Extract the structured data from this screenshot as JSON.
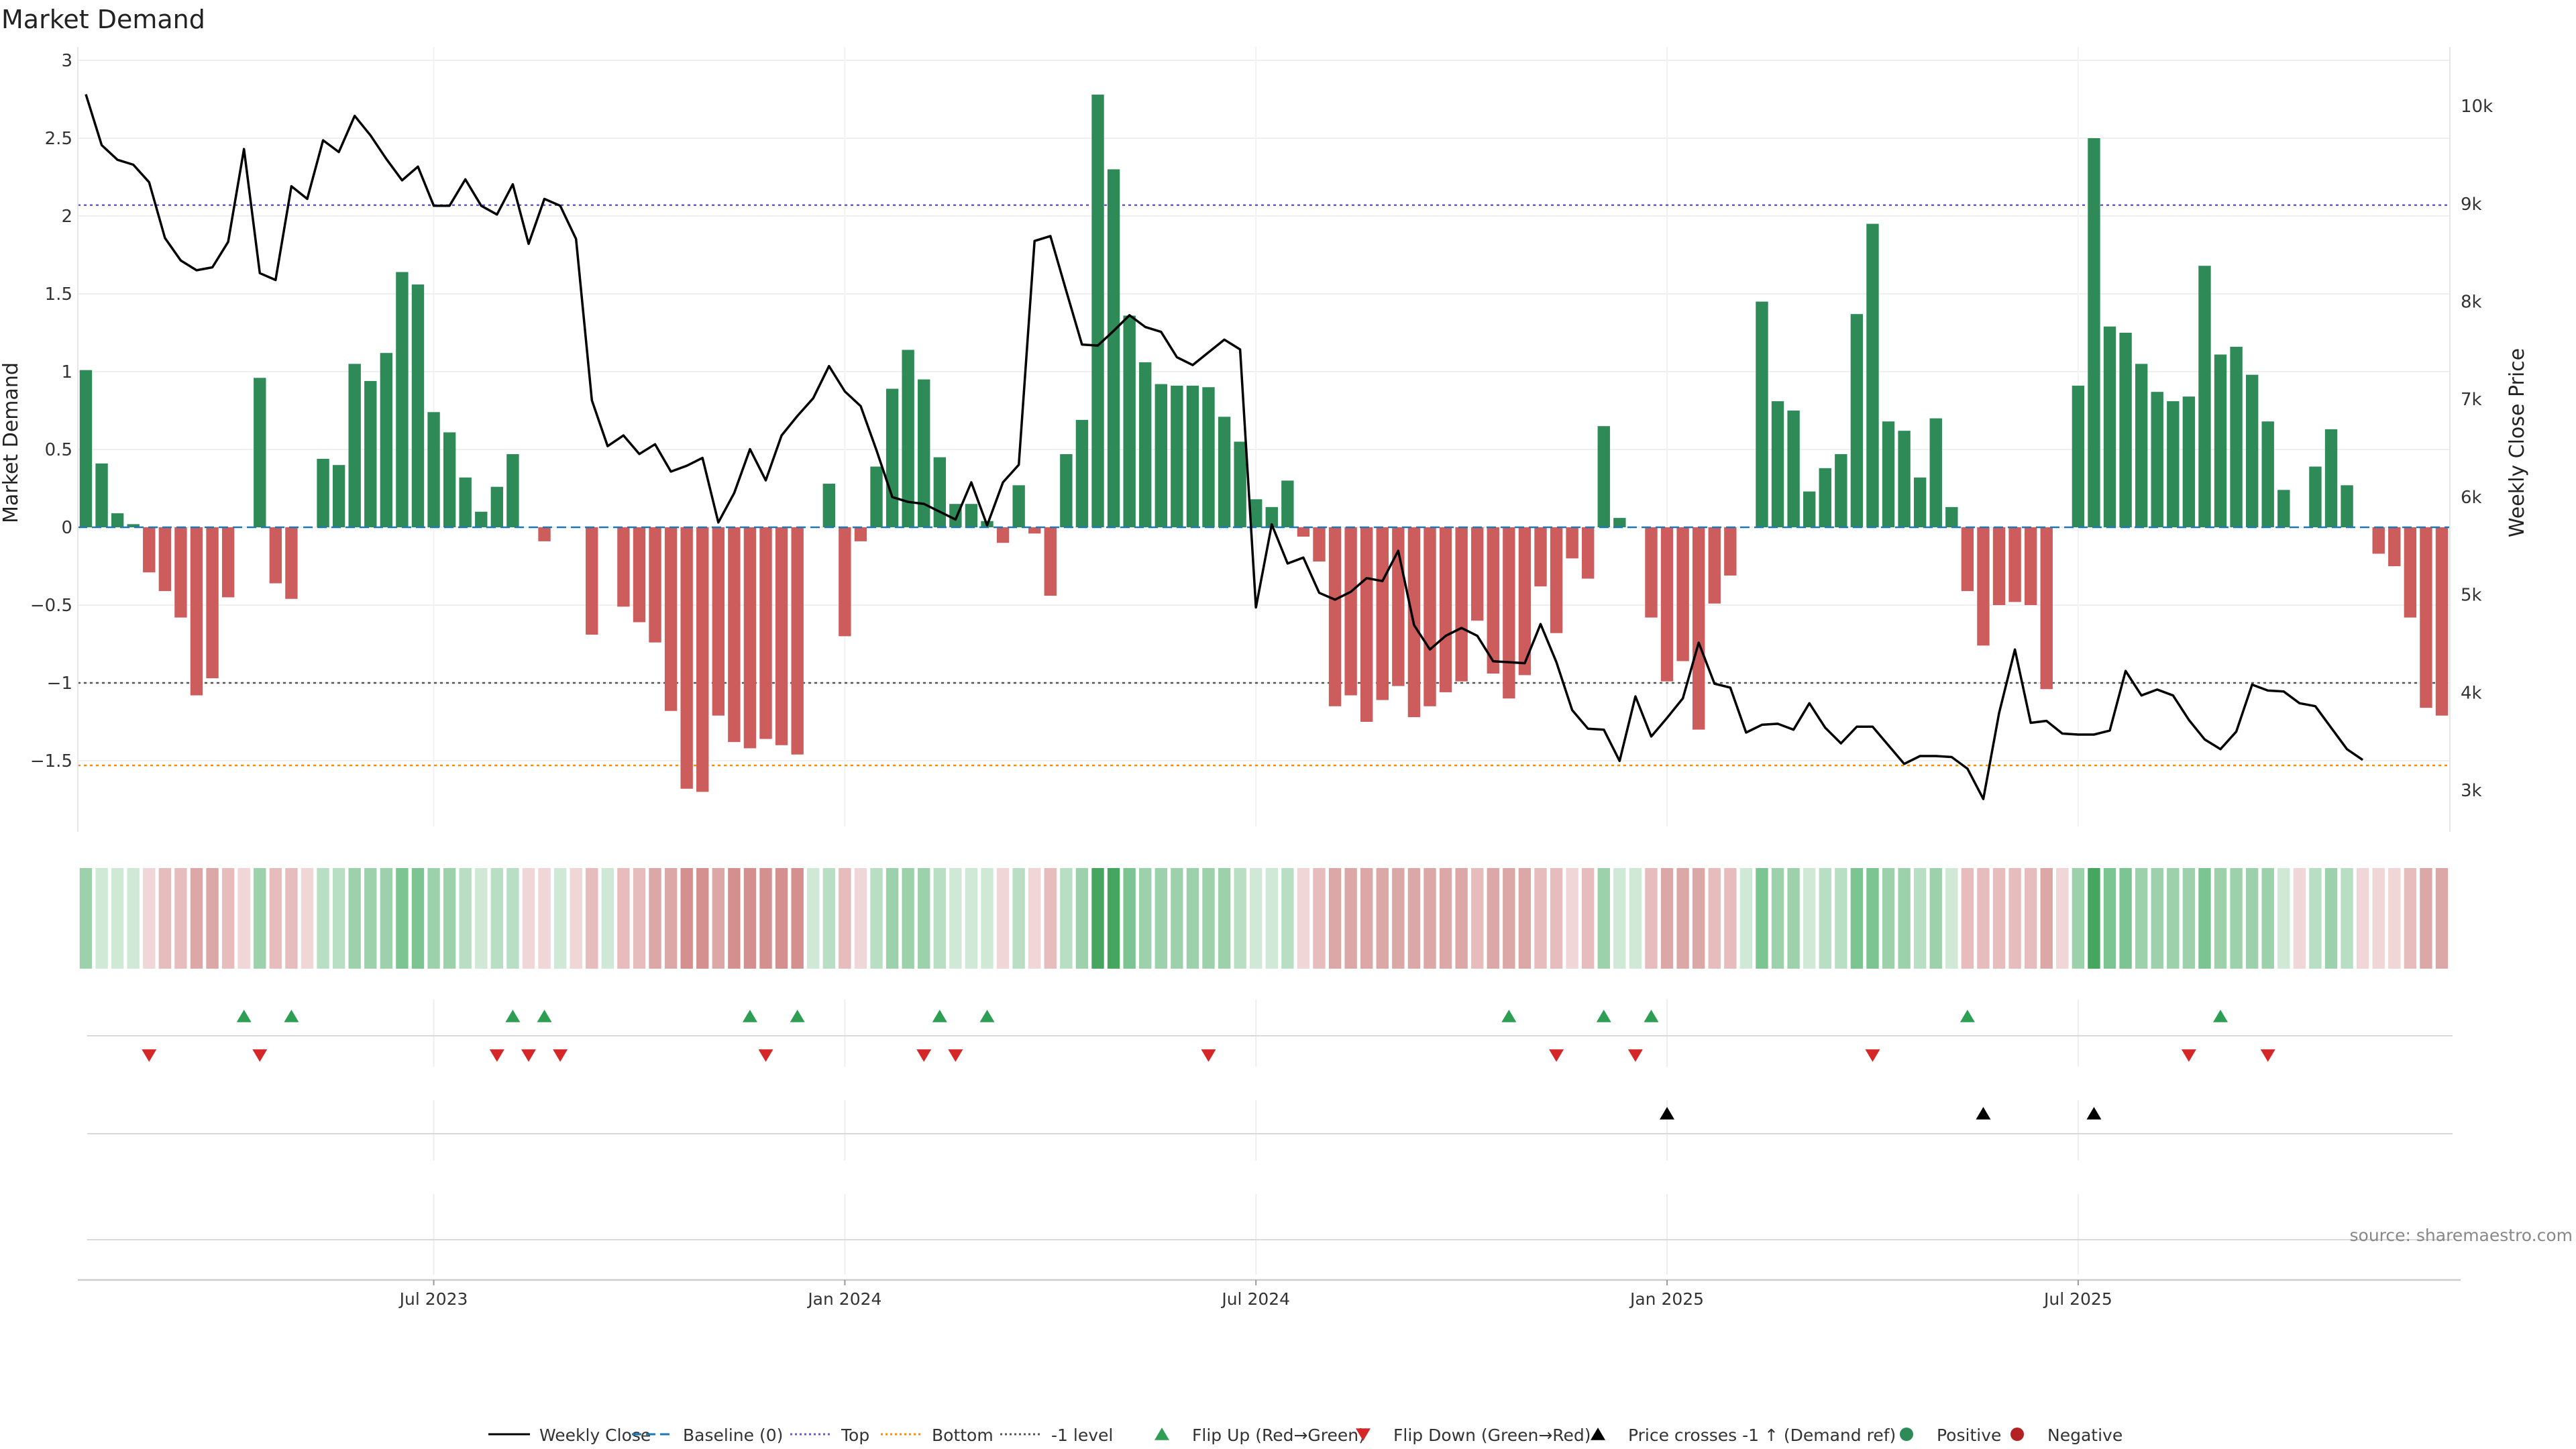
{
  "chart_data": {
    "type": "bar",
    "title": "Market Demand",
    "ylabel": "Market Demand",
    "y2label": "Weekly Close Price",
    "source": "source: sharemaestro.com",
    "ylim": [
      -1.95,
      3.0
    ],
    "y2lim": [
      2800,
      10500
    ],
    "yticks": [
      "3",
      "2.5",
      "2",
      "1.5",
      "1",
      "0.5",
      "0",
      "−0.5",
      "−1",
      "−1.5"
    ],
    "ytick_values": [
      3,
      2.5,
      2,
      1.5,
      1,
      0.5,
      0,
      -0.5,
      -1,
      -1.5
    ],
    "y2ticks": [
      "10k",
      "9k",
      "8k",
      "7k",
      "6k",
      "5k",
      "4k",
      "3k"
    ],
    "y2tick_values": [
      10000,
      9000,
      8000,
      7000,
      6000,
      5000,
      4000,
      3000
    ],
    "xticks": [
      "Jul 2023",
      "Jan 2024",
      "Jul 2024",
      "Jan 2025",
      "Jul 2025"
    ],
    "xtick_weeks": [
      22,
      48,
      74,
      100,
      126
    ],
    "levels": {
      "top": 2.07,
      "bottom": -1.53,
      "minus_one": -1.0
    },
    "demand": [
      1.01,
      0.41,
      0.09,
      0.02,
      -0.29,
      -0.41,
      -0.58,
      -1.08,
      -0.97,
      -0.45,
      0,
      0.96,
      -0.36,
      -0.46,
      0,
      0.44,
      0.4,
      1.05,
      0.94,
      1.12,
      1.64,
      1.56,
      0.74,
      0.61,
      0.32,
      0.1,
      0.26,
      0.47,
      0,
      -0.09,
      0,
      0,
      -0.69,
      0,
      -0.51,
      -0.61,
      -0.74,
      -1.18,
      -1.68,
      -1.7,
      -1.21,
      -1.38,
      -1.42,
      -1.36,
      -1.4,
      -1.46,
      0,
      0.28,
      -0.7,
      -0.09,
      0.39,
      0.89,
      1.14,
      0.95,
      0.45,
      0.15,
      0.15,
      0.04,
      -0.1,
      0.27,
      -0.04,
      -0.44,
      0.47,
      0.69,
      2.78,
      2.3,
      1.36,
      1.06,
      0.92,
      0.91,
      0.91,
      0.9,
      0.71,
      0.55,
      0.18,
      0.13,
      0.3,
      -0.06,
      -0.22,
      -1.15,
      -1.08,
      -1.25,
      -1.11,
      -1.02,
      -1.22,
      -1.15,
      -1.06,
      -0.99,
      -0.6,
      -0.94,
      -1.1,
      -0.95,
      -0.38,
      -0.68,
      -0.2,
      -0.33,
      0.65,
      0.06,
      0,
      -0.58,
      -0.99,
      -0.86,
      -1.3,
      -0.49,
      -0.31,
      0,
      1.45,
      0.81,
      0.75,
      0.23,
      0.38,
      0.47,
      1.37,
      1.95,
      0.68,
      0.62,
      0.32,
      0.7,
      0.13,
      -0.41,
      -0.76,
      -0.5,
      -0.48,
      -0.5,
      -1.04,
      0,
      0.91,
      2.5,
      1.29,
      1.25,
      1.05,
      0.87,
      0.81,
      0.84,
      1.68,
      1.11,
      1.16,
      0.98,
      0.68,
      0.24,
      0,
      0.39,
      0.63,
      0.27,
      0,
      -0.17,
      -0.25,
      -0.58,
      -1.16,
      -1.21
    ],
    "price": [
      10120,
      9600,
      9450,
      9400,
      9220,
      8650,
      8420,
      8320,
      8350,
      8610,
      9560,
      8290,
      8220,
      9180,
      9050,
      9650,
      9530,
      9900,
      9700,
      9460,
      9240,
      9380,
      8980,
      8980,
      9250,
      8980,
      8890,
      9200,
      8590,
      9050,
      8980,
      8640,
      6990,
      6520,
      6630,
      6440,
      6540,
      6260,
      6320,
      6400,
      5740,
      6040,
      6490,
      6170,
      6630,
      6830,
      7010,
      7340,
      7080,
      6930,
      6480,
      6000,
      5950,
      5930,
      5850,
      5770,
      6150,
      5710,
      6150,
      6330,
      8620,
      8670,
      8110,
      7560,
      7550,
      7700,
      7860,
      7740,
      7690,
      7430,
      7350,
      7480,
      7610,
      7510,
      4870,
      5720,
      5320,
      5380,
      5020,
      4950,
      5030,
      5170,
      5140,
      5450,
      4690,
      4440,
      4580,
      4660,
      4580,
      4320,
      4310,
      4300,
      4700,
      4310,
      3820,
      3630,
      3620,
      3300,
      3960,
      3550,
      3740,
      3940,
      4510,
      4090,
      4050,
      3590,
      3670,
      3680,
      3620,
      3890,
      3640,
      3480,
      3650,
      3650,
      3460,
      3270,
      3350,
      3350,
      3340,
      3220,
      2910,
      3790,
      4440,
      3690,
      3710,
      3580,
      3570,
      3570,
      3610,
      4220,
      3970,
      4030,
      3970,
      3720,
      3520,
      3420,
      3600,
      4080,
      4020,
      4010,
      3890,
      3860,
      3640,
      3420,
      3310
    ],
    "strip_shades": [
      3,
      1,
      1,
      1,
      -1,
      -2,
      -2,
      -3,
      -3,
      -2,
      -1,
      3,
      -2,
      -2,
      -1,
      2,
      2,
      3,
      3,
      3,
      4,
      4,
      3,
      3,
      2,
      1,
      2,
      2,
      -1,
      -1,
      1,
      -1,
      -2,
      1,
      -2,
      -2,
      -3,
      -3,
      -4,
      -4,
      -3,
      -4,
      -4,
      -4,
      -4,
      -4,
      1,
      2,
      -2,
      -1,
      2,
      3,
      3,
      3,
      2,
      1,
      1,
      1,
      -1,
      2,
      -1,
      -2,
      2,
      3,
      5,
      5,
      4,
      3,
      3,
      3,
      3,
      3,
      3,
      2,
      1,
      1,
      2,
      -1,
      -2,
      -3,
      -3,
      -3,
      -3,
      -3,
      -3,
      -3,
      -3,
      -3,
      -2,
      -3,
      -3,
      -3,
      -2,
      -2,
      -1,
      -2,
      3,
      1,
      1,
      -2,
      -3,
      -3,
      -3,
      -2,
      -2,
      1,
      4,
      3,
      3,
      1,
      2,
      2,
      4,
      4,
      3,
      3,
      2,
      3,
      1,
      -2,
      -2,
      -2,
      -2,
      -2,
      -3,
      -1,
      3,
      5,
      4,
      4,
      3,
      3,
      3,
      3,
      4,
      3,
      3,
      3,
      3,
      1,
      -1,
      2,
      3,
      2,
      -1,
      -1,
      -1,
      -2,
      -3,
      -3
    ],
    "flip_up_weeks": [
      10,
      13,
      27,
      29,
      42,
      45,
      54,
      57,
      90,
      96,
      99,
      119,
      135
    ],
    "flip_down_weeks": [
      4,
      11,
      26,
      28,
      30,
      43,
      53,
      55,
      71,
      93,
      98,
      113,
      133,
      138
    ],
    "price_cross_weeks": [
      100,
      120,
      127
    ],
    "legend": [
      {
        "label": "Weekly Close",
        "kind": "line",
        "color": "#000000",
        "dash": ""
      },
      {
        "label": "Baseline (0)",
        "kind": "line",
        "color": "#1f77b4",
        "dash": "14,7"
      },
      {
        "label": "Top",
        "kind": "line",
        "color": "#6a5acd",
        "dash": "3,4"
      },
      {
        "label": "Bottom",
        "kind": "line",
        "color": "#ff8c00",
        "dash": "3,4"
      },
      {
        "label": "-1 level",
        "kind": "line",
        "color": "#555555",
        "dash": "3,4"
      },
      {
        "label": "Flip Up (Red→Green)",
        "kind": "tri-up",
        "color": "#2e9e54"
      },
      {
        "label": "Flip Down (Green→Red)",
        "kind": "tri-down",
        "color": "#d62728"
      },
      {
        "label": "Price crosses -1 ↑ (Demand ref)",
        "kind": "tri-up",
        "color": "#000000"
      },
      {
        "label": "Positive",
        "kind": "dot",
        "color": "#2e8b57"
      },
      {
        "label": "Negative",
        "kind": "dot",
        "color": "#b22222"
      }
    ],
    "colors": {
      "positive_bar": "#2e8b57",
      "negative_bar": "#cd5c5c",
      "price_line": "#000000",
      "baseline": "#1f77b4",
      "top_level": "#6a5acd",
      "bottom_level": "#ff8c00",
      "minus_one_level": "#555555",
      "strip_green": [
        "#cfe9d6",
        "#b8dfc3",
        "#9dd1ac",
        "#7cc491",
        "#46a65f"
      ],
      "strip_red": [
        "#f0d6d6",
        "#e6bcbc",
        "#dca7a7",
        "#d48f8f"
      ]
    }
  }
}
